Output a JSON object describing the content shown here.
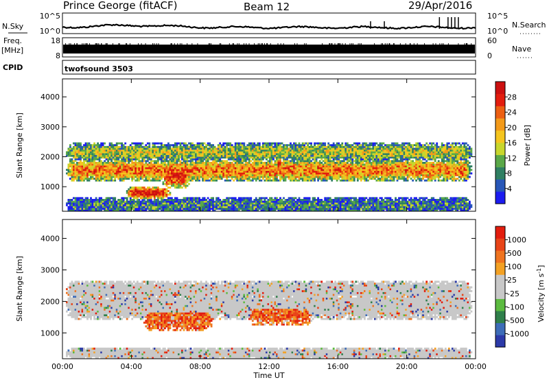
{
  "header": {
    "station": "Prince George (fitACF)",
    "beam": "Beam 12",
    "date": "29/Apr/2016"
  },
  "panels": {
    "nsky_label": "N.Sky",
    "nsky_ticks": [
      "10^5",
      "10^0"
    ],
    "nsearch_label": "N.Search",
    "nsearch_ticks": [
      "10^5",
      "10^0"
    ],
    "freq_label": "Freq.",
    "freq_unit": "[MHz]",
    "freq_ticks": [
      "18",
      "8"
    ],
    "nave_label": "Nave",
    "nave_ticks": [
      "60",
      "0"
    ],
    "cpid_label": "CPID",
    "cpid_value": "twofsound 3503"
  },
  "chart_data": [
    {
      "type": "heatmap",
      "name": "power",
      "ylabel": "Slant Range [km]",
      "ylim": [
        180,
        4600
      ],
      "yticks": [
        "1000",
        "2000",
        "3000",
        "4000"
      ],
      "xlabel": "Time UT",
      "xlim": [
        "00:00",
        "24:00"
      ],
      "xticks": [
        "00:00",
        "04:00",
        "08:00",
        "12:00",
        "16:00",
        "20:00",
        "00:00"
      ],
      "colorbar": {
        "label": "Power [dB]",
        "ticks": [
          "4",
          "8",
          "12",
          "16",
          "20",
          "24",
          "28"
        ],
        "colors": [
          "#1c1cf0",
          "#2857b8",
          "#2f7f62",
          "#5aa848",
          "#c8d62c",
          "#f5c51e",
          "#f39a1a",
          "#ec5f12",
          "#e31d0e",
          "#cc1010"
        ]
      },
      "bands": [
        {
          "t_start": 0.0,
          "t_end": 24.0,
          "range_center": 1550,
          "range_width": 380,
          "level": 0.72
        },
        {
          "t_start": 0.0,
          "t_end": 24.0,
          "range_center": 2150,
          "range_width": 320,
          "level": 0.45
        },
        {
          "t_start": 3.5,
          "t_end": 6.5,
          "range_center": 800,
          "range_width": 220,
          "level": 0.95
        },
        {
          "t_start": 5.5,
          "t_end": 7.7,
          "range_center": 1400,
          "range_width": 450,
          "level": 0.92
        },
        {
          "t_start": 12.0,
          "t_end": 13.2,
          "range_center": 1700,
          "range_width": 400,
          "level": 0.9
        },
        {
          "t_start": 0.0,
          "t_end": 24.0,
          "range_center": 380,
          "range_width": 260,
          "level": 0.25
        }
      ]
    },
    {
      "type": "heatmap",
      "name": "velocity",
      "ylabel": "Slant Range [km]",
      "ylim": [
        180,
        4600
      ],
      "yticks": [
        "1000",
        "2000",
        "3000",
        "4000"
      ],
      "xlabel": "Time UT",
      "xlim": [
        "00:00",
        "24:00"
      ],
      "xticks": [
        "00:00",
        "04:00",
        "08:00",
        "12:00",
        "16:00",
        "20:00",
        "00:00"
      ],
      "colorbar": {
        "label": "Velocity [m s",
        "label_sup": "-1",
        "label_end": "]",
        "ticks": [
          "1000",
          "500",
          "100",
          "25",
          "-25",
          "-100",
          "-500",
          "-1000"
        ],
        "colors": [
          "#2c3aa8",
          "#3d6cb8",
          "#2f7f4a",
          "#5cbb40",
          "#c8c8c8",
          "#c8c8c8",
          "#f3a124",
          "#ef7420",
          "#e84418",
          "#e31d0e"
        ]
      },
      "bands": [
        {
          "t_start": 0.0,
          "t_end": 24.0,
          "range_center": 1850,
          "range_width": 420,
          "level": 0.5
        },
        {
          "t_start": 0.0,
          "t_end": 24.0,
          "range_center": 2350,
          "range_width": 300,
          "level": 0.5
        },
        {
          "t_start": 4.5,
          "t_end": 9.0,
          "range_center": 1500,
          "range_width": 420,
          "level": 0.82
        },
        {
          "t_start": 10.5,
          "t_end": 14.8,
          "range_center": 1700,
          "range_width": 450,
          "level": 0.78
        },
        {
          "t_start": 0.0,
          "t_end": 24.0,
          "range_center": 350,
          "range_width": 200,
          "level": 0.3
        }
      ]
    }
  ]
}
